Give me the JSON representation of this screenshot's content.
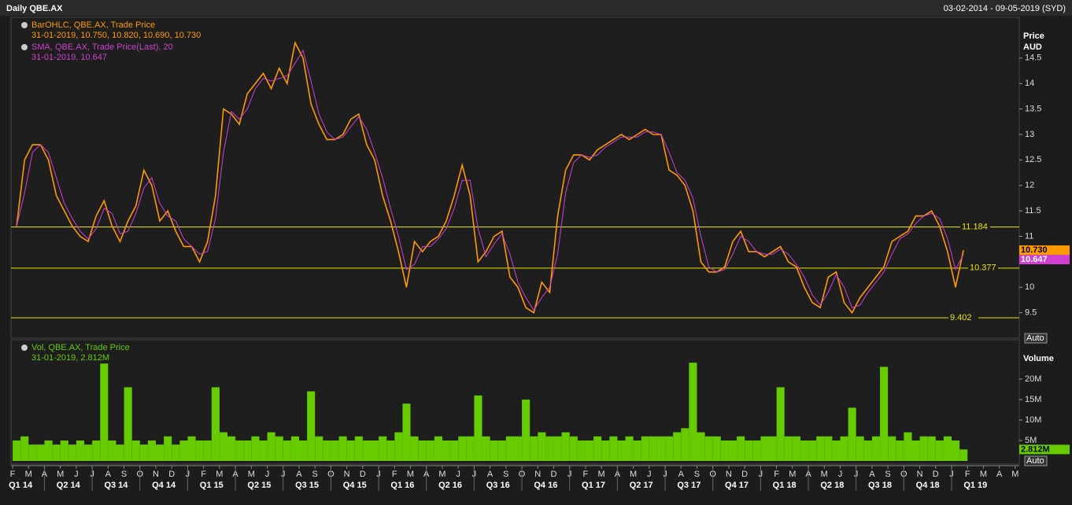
{
  "header": {
    "title": "Daily QBE.AX",
    "range": "03-02-2014 - 09-05-2019 (SYD)"
  },
  "chart_data": [
    {
      "type": "line",
      "axis_title": [
        "Price",
        "AUD"
      ],
      "series": [
        {
          "name": "BarOHLC, QBE.AX, Trade Price",
          "info": "31-01-2019, 10.750, 10.820, 10.690, 10.730",
          "color": "#ff9900",
          "values": [
            11.2,
            12.5,
            12.8,
            12.8,
            12.5,
            11.8,
            11.5,
            11.2,
            11.0,
            10.9,
            11.4,
            11.7,
            11.2,
            10.9,
            11.3,
            11.6,
            12.3,
            12.0,
            11.3,
            11.5,
            11.1,
            10.8,
            10.8,
            10.5,
            10.9,
            11.8,
            13.5,
            13.4,
            13.2,
            13.8,
            14.0,
            14.2,
            13.9,
            14.3,
            14.0,
            14.8,
            14.5,
            13.6,
            13.2,
            12.9,
            12.9,
            13.0,
            13.3,
            13.4,
            12.8,
            12.5,
            11.8,
            11.3,
            10.7,
            10.0,
            10.9,
            10.7,
            10.9,
            11.0,
            11.3,
            11.8,
            12.4,
            11.8,
            10.5,
            10.7,
            11.0,
            11.1,
            10.2,
            10.0,
            9.6,
            9.5,
            10.1,
            9.9,
            11.4,
            12.3,
            12.6,
            12.6,
            12.5,
            12.7,
            12.8,
            12.9,
            13.0,
            12.9,
            13.0,
            13.1,
            13.0,
            13.0,
            12.3,
            12.2,
            12.0,
            11.5,
            10.5,
            10.3,
            10.3,
            10.4,
            10.9,
            11.1,
            10.7,
            10.7,
            10.6,
            10.7,
            10.8,
            10.5,
            10.4,
            10.0,
            9.7,
            9.6,
            10.2,
            10.3,
            9.7,
            9.5,
            9.8,
            10.0,
            10.2,
            10.4,
            10.9,
            11.0,
            11.1,
            11.4,
            11.4,
            11.5,
            11.2,
            10.7,
            10.0,
            10.73
          ]
        },
        {
          "name": "SMA, QBE.AX, Trade Price(Last),  20",
          "info": "31-01-2019, 10.647",
          "color": "#d040d0",
          "values": [
            11.2,
            11.85,
            12.65,
            12.8,
            12.65,
            12.15,
            11.65,
            11.35,
            11.1,
            10.95,
            11.15,
            11.55,
            11.45,
            11.05,
            11.1,
            11.45,
            11.95,
            12.15,
            11.65,
            11.4,
            11.3,
            10.95,
            10.8,
            10.65,
            10.7,
            11.35,
            12.65,
            13.45,
            13.3,
            13.5,
            13.9,
            14.1,
            14.05,
            14.1,
            14.15,
            14.4,
            14.65,
            14.05,
            13.4,
            13.05,
            12.9,
            12.95,
            13.15,
            13.35,
            13.1,
            12.65,
            12.15,
            11.55,
            11.0,
            10.35,
            10.45,
            10.8,
            10.8,
            10.95,
            11.15,
            11.55,
            12.1,
            12.1,
            11.15,
            10.6,
            10.85,
            11.05,
            10.65,
            10.1,
            9.8,
            9.55,
            9.8,
            10.0,
            10.65,
            11.85,
            12.45,
            12.6,
            12.55,
            12.6,
            12.75,
            12.85,
            12.95,
            12.95,
            12.95,
            13.05,
            13.05,
            13.0,
            12.65,
            12.25,
            12.1,
            11.75,
            11.0,
            10.4,
            10.3,
            10.35,
            10.65,
            11.0,
            10.9,
            10.7,
            10.65,
            10.65,
            10.75,
            10.65,
            10.45,
            10.2,
            9.85,
            9.65,
            9.9,
            10.25,
            10.0,
            9.6,
            9.65,
            9.9,
            10.1,
            10.3,
            10.65,
            10.95,
            11.05,
            11.25,
            11.4,
            11.45,
            11.35,
            10.95,
            10.35,
            10.647
          ]
        }
      ],
      "ylim": [
        9.0,
        15.3
      ],
      "yticks": [
        9.5,
        10,
        10.5,
        11,
        11.5,
        12,
        12.5,
        13,
        13.5,
        14,
        14.5
      ],
      "hlines": [
        11.184,
        10.377,
        9.402
      ],
      "hline_color": "#e6e600",
      "last_values": [
        {
          "value": 10.73,
          "label": "10.730"
        },
        10.647
      ],
      "scale_button": "Auto"
    },
    {
      "type": "bar",
      "axis_title": "Volume",
      "series": [
        {
          "name": "Vol, QBE.AX, Trade Price",
          "info": "31-01-2019, 2.812M",
          "color": "#66cc00",
          "values": [
            5,
            6,
            4,
            4,
            5,
            4,
            5,
            4,
            5,
            4,
            5,
            23.8,
            5,
            4,
            18,
            5,
            4,
            5,
            4,
            6,
            4,
            5,
            6,
            5,
            5,
            18,
            7,
            6,
            5,
            5,
            6,
            5,
            7,
            6,
            5,
            6,
            5,
            17,
            6,
            5,
            5,
            6,
            5,
            6,
            5,
            5,
            6,
            5,
            7,
            14,
            6,
            5,
            5,
            6,
            5,
            5,
            6,
            6,
            16,
            6,
            5,
            5,
            6,
            6,
            15,
            6,
            7,
            6,
            6,
            7,
            6,
            5,
            5,
            6,
            5,
            6,
            5,
            6,
            5,
            6,
            6,
            6,
            6,
            7,
            8,
            24,
            7,
            6,
            6,
            5,
            5,
            6,
            5,
            5,
            6,
            6,
            18,
            6,
            6,
            5,
            5,
            6,
            6,
            5,
            6,
            13,
            6,
            5,
            6,
            23,
            6,
            5,
            7,
            5,
            6,
            6,
            5,
            6,
            5,
            2.812
          ]
        }
      ],
      "ylim": [
        0,
        29.6
      ],
      "yticks": [
        {
          "value": 5,
          "label": "5M"
        },
        {
          "value": 10,
          "label": "10M"
        },
        {
          "value": 15,
          "label": "15M"
        },
        {
          "value": 20,
          "label": "20M"
        }
      ],
      "last_values": [
        {
          "value": 2.812,
          "label": "2.812M"
        }
      ],
      "scale_button": "Auto"
    }
  ],
  "x_axis": {
    "months": [
      "F",
      "M",
      "A",
      "M",
      "J",
      "J",
      "A",
      "S",
      "O",
      "N",
      "D",
      "J",
      "F",
      "M",
      "A",
      "M",
      "J",
      "J",
      "A",
      "S",
      "O",
      "N",
      "D",
      "J",
      "F",
      "M",
      "A",
      "M",
      "J",
      "J",
      "A",
      "S",
      "O",
      "N",
      "D",
      "J",
      "F",
      "M",
      "A",
      "M",
      "J",
      "J",
      "A",
      "S",
      "O",
      "N",
      "D",
      "J",
      "F",
      "M",
      "A",
      "M",
      "J",
      "J",
      "A",
      "S",
      "O",
      "N",
      "D",
      "J",
      "F",
      "M",
      "A",
      "M"
    ],
    "quarters": [
      {
        "value": -1,
        "label": "Q1 14"
      },
      {
        "value": 2,
        "label": "Q2 14"
      },
      {
        "value": 5,
        "label": "Q3 14"
      },
      {
        "value": 8,
        "label": "Q4 14"
      },
      {
        "value": 11,
        "label": "Q1 15"
      },
      {
        "value": 14,
        "label": "Q2 15"
      },
      {
        "value": 17,
        "label": "Q3 15"
      },
      {
        "value": 20,
        "label": "Q4 15"
      },
      {
        "value": 23,
        "label": "Q1 16"
      },
      {
        "value": 26,
        "label": "Q2 16"
      },
      {
        "value": 29,
        "label": "Q3 16"
      },
      {
        "value": 32,
        "label": "Q4 16"
      },
      {
        "value": 35,
        "label": "Q1 17"
      },
      {
        "value": 38,
        "label": "Q2 17"
      },
      {
        "value": 41,
        "label": "Q3 17"
      },
      {
        "value": 44,
        "label": "Q4 17"
      },
      {
        "value": 47,
        "label": "Q1 18"
      },
      {
        "value": 50,
        "label": "Q2 18"
      },
      {
        "value": 53,
        "label": "Q3 18"
      },
      {
        "value": 56,
        "label": "Q4 18"
      },
      {
        "value": 59,
        "label": "Q1 19"
      }
    ]
  }
}
